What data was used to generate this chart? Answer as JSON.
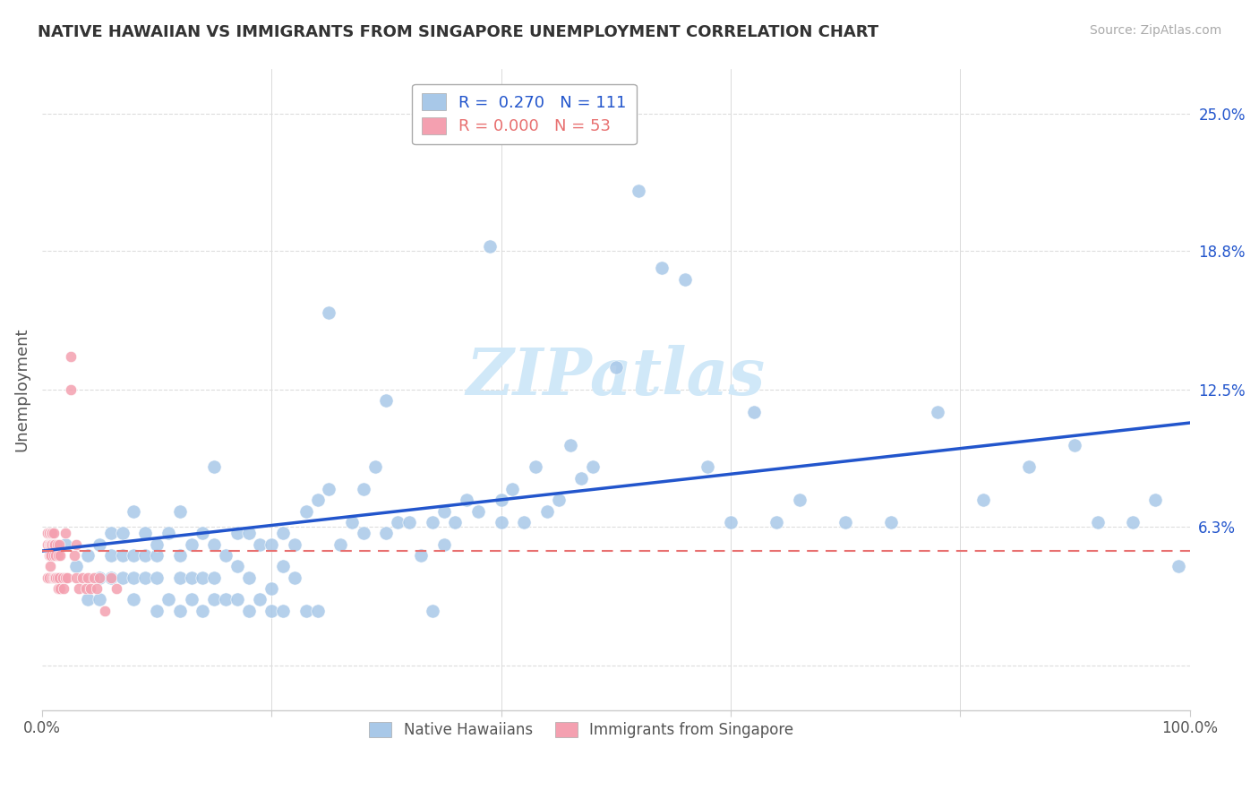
{
  "title": "NATIVE HAWAIIAN VS IMMIGRANTS FROM SINGAPORE UNEMPLOYMENT CORRELATION CHART",
  "source": "Source: ZipAtlas.com",
  "ylabel": "Unemployment",
  "xlim": [
    0.0,
    1.0
  ],
  "ylim": [
    -0.02,
    0.27
  ],
  "yticks": [
    0.0,
    0.063,
    0.125,
    0.188,
    0.25
  ],
  "ytick_labels": [
    "",
    "6.3%",
    "12.5%",
    "18.8%",
    "25.0%"
  ],
  "title_color": "#333333",
  "source_color": "#aaaaaa",
  "blue_color": "#a8c8e8",
  "pink_color": "#f4a0b0",
  "line_blue_color": "#2255cc",
  "line_pink_color": "#e87070",
  "R_blue": 0.27,
  "N_blue": 111,
  "R_pink": 0.0,
  "N_pink": 53,
  "blue_x": [
    0.02,
    0.03,
    0.04,
    0.04,
    0.05,
    0.05,
    0.05,
    0.06,
    0.06,
    0.06,
    0.07,
    0.07,
    0.07,
    0.08,
    0.08,
    0.08,
    0.08,
    0.09,
    0.09,
    0.09,
    0.1,
    0.1,
    0.1,
    0.1,
    0.11,
    0.11,
    0.12,
    0.12,
    0.12,
    0.12,
    0.13,
    0.13,
    0.13,
    0.14,
    0.14,
    0.14,
    0.15,
    0.15,
    0.15,
    0.15,
    0.16,
    0.16,
    0.17,
    0.17,
    0.17,
    0.18,
    0.18,
    0.18,
    0.19,
    0.19,
    0.2,
    0.2,
    0.2,
    0.21,
    0.21,
    0.21,
    0.22,
    0.22,
    0.23,
    0.23,
    0.24,
    0.24,
    0.25,
    0.25,
    0.26,
    0.27,
    0.28,
    0.28,
    0.29,
    0.3,
    0.3,
    0.31,
    0.32,
    0.33,
    0.34,
    0.34,
    0.35,
    0.35,
    0.36,
    0.37,
    0.38,
    0.39,
    0.4,
    0.4,
    0.41,
    0.42,
    0.43,
    0.44,
    0.45,
    0.46,
    0.47,
    0.48,
    0.5,
    0.52,
    0.54,
    0.56,
    0.58,
    0.6,
    0.62,
    0.64,
    0.66,
    0.7,
    0.74,
    0.78,
    0.82,
    0.86,
    0.9,
    0.92,
    0.95,
    0.97,
    0.99
  ],
  "blue_y": [
    0.055,
    0.045,
    0.05,
    0.03,
    0.04,
    0.055,
    0.03,
    0.04,
    0.05,
    0.06,
    0.04,
    0.05,
    0.06,
    0.03,
    0.04,
    0.05,
    0.07,
    0.04,
    0.05,
    0.06,
    0.025,
    0.04,
    0.05,
    0.055,
    0.03,
    0.06,
    0.025,
    0.04,
    0.05,
    0.07,
    0.03,
    0.04,
    0.055,
    0.025,
    0.04,
    0.06,
    0.03,
    0.04,
    0.055,
    0.09,
    0.03,
    0.05,
    0.03,
    0.045,
    0.06,
    0.025,
    0.04,
    0.06,
    0.03,
    0.055,
    0.025,
    0.035,
    0.055,
    0.025,
    0.045,
    0.06,
    0.04,
    0.055,
    0.025,
    0.07,
    0.025,
    0.075,
    0.08,
    0.16,
    0.055,
    0.065,
    0.06,
    0.08,
    0.09,
    0.06,
    0.12,
    0.065,
    0.065,
    0.05,
    0.025,
    0.065,
    0.055,
    0.07,
    0.065,
    0.075,
    0.07,
    0.19,
    0.065,
    0.075,
    0.08,
    0.065,
    0.09,
    0.07,
    0.075,
    0.1,
    0.085,
    0.09,
    0.135,
    0.215,
    0.18,
    0.175,
    0.09,
    0.065,
    0.115,
    0.065,
    0.075,
    0.065,
    0.065,
    0.115,
    0.075,
    0.09,
    0.1,
    0.065,
    0.065,
    0.075,
    0.045
  ],
  "pink_x": [
    0.005,
    0.005,
    0.005,
    0.006,
    0.006,
    0.006,
    0.006,
    0.007,
    0.007,
    0.007,
    0.008,
    0.008,
    0.008,
    0.009,
    0.009,
    0.009,
    0.01,
    0.01,
    0.01,
    0.01,
    0.011,
    0.011,
    0.012,
    0.012,
    0.013,
    0.013,
    0.014,
    0.014,
    0.015,
    0.015,
    0.016,
    0.016,
    0.018,
    0.019,
    0.02,
    0.02,
    0.022,
    0.025,
    0.025,
    0.028,
    0.03,
    0.03,
    0.032,
    0.035,
    0.038,
    0.04,
    0.042,
    0.045,
    0.048,
    0.05,
    0.055,
    0.06,
    0.065
  ],
  "pink_y": [
    0.055,
    0.06,
    0.04,
    0.06,
    0.05,
    0.055,
    0.04,
    0.055,
    0.05,
    0.045,
    0.06,
    0.055,
    0.05,
    0.04,
    0.055,
    0.06,
    0.04,
    0.05,
    0.055,
    0.06,
    0.04,
    0.055,
    0.04,
    0.05,
    0.04,
    0.055,
    0.035,
    0.05,
    0.04,
    0.055,
    0.035,
    0.05,
    0.04,
    0.035,
    0.04,
    0.06,
    0.04,
    0.14,
    0.125,
    0.05,
    0.04,
    0.055,
    0.035,
    0.04,
    0.035,
    0.04,
    0.035,
    0.04,
    0.035,
    0.04,
    0.025,
    0.04,
    0.035
  ],
  "watermark": "ZIPatlas",
  "watermark_color": "#d0e8f8",
  "reg_blue_intercept": 0.052,
  "reg_blue_slope": 0.058,
  "reg_pink_intercept": 0.052,
  "reg_pink_slope": 0.0
}
